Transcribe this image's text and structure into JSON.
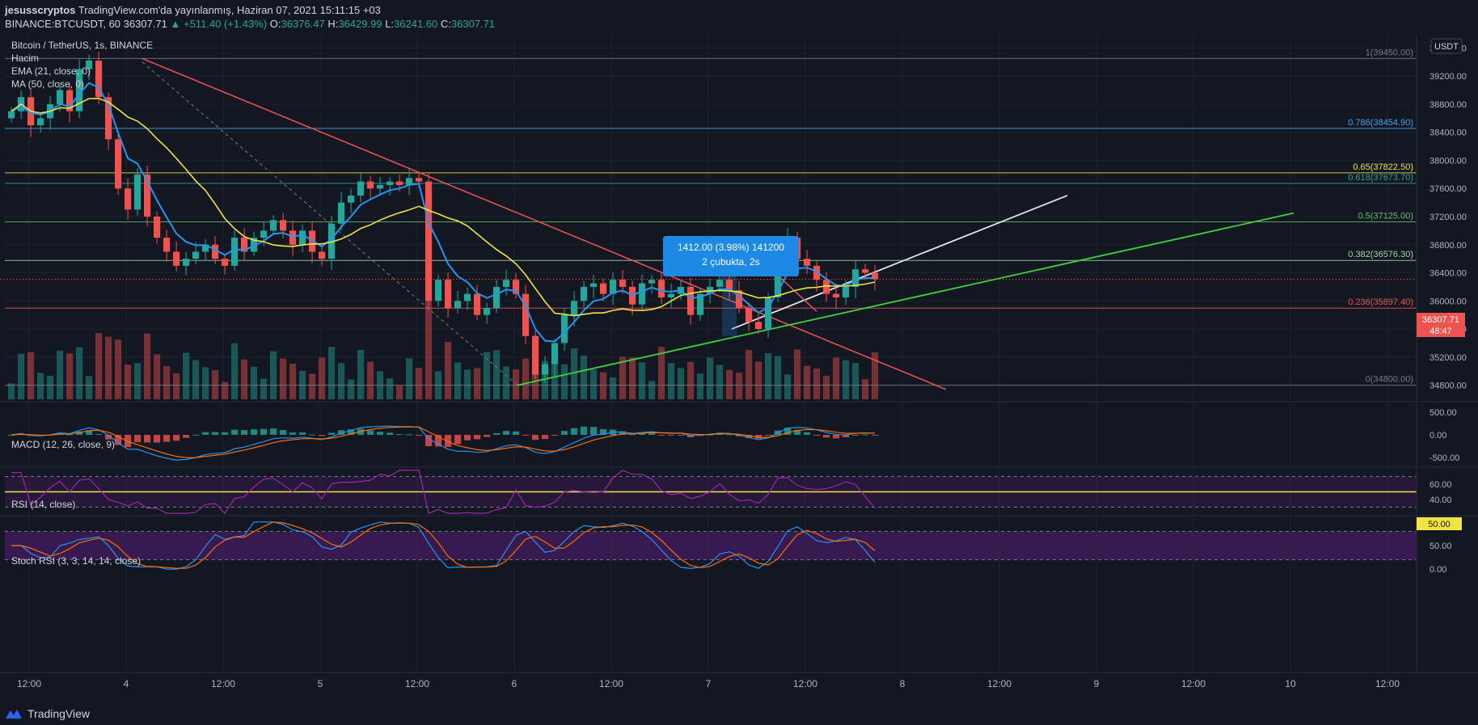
{
  "header": {
    "user": "jesusscryptos",
    "published": "TradingView.com'da yayınlanmış, Haziran 07, 2021 15:11:15 +03",
    "symbol": "BINANCE:BTCUSDT, 60",
    "last": "36307.71",
    "change": "▲ +511.40 (+1.43%)",
    "o_label": "O:",
    "o": "36376.47",
    "h_label": "H:",
    "h": "36429.99",
    "l_label": "L:",
    "l": "36241.60",
    "c_label": "C:",
    "c": "36307.71"
  },
  "legend": {
    "title": "Bitcoin / TetherUS, 1s, BINANCE",
    "volume": "Hacim",
    "ema": "EMA (21, close, 0)",
    "ma": "MA (50, close, 0)"
  },
  "currency": "USDT",
  "price_badge": {
    "price": "36307.71",
    "countdown": "48:47"
  },
  "measure": {
    "line1": "1412.00 (3.98%) 141200",
    "line2": "2 çubukta, 2s"
  },
  "footer": {
    "brand": "TradingView"
  },
  "colors": {
    "bg": "#131722",
    "up": "#26a69a",
    "down": "#ef5350",
    "ema": "#2196f3",
    "ma": "#f0e442",
    "rsi": "#7b1fa2",
    "measure": "#1e88e5"
  },
  "chart_data": [
    {
      "type": "candlestick",
      "title": "Bitcoin / TetherUS, 1s, BINANCE",
      "ylim": [
        34600,
        39800
      ],
      "y_ticks": [
        "39600.00",
        "39200.00",
        "38800.00",
        "38400.00",
        "38000.00",
        "37600.00",
        "37200.00",
        "36800.00",
        "36400.00",
        "36000.00",
        "35600.00",
        "35200.00",
        "34800.00"
      ],
      "x_ticks": [
        "12:00",
        "4",
        "12:00",
        "5",
        "12:00",
        "6",
        "12:00",
        "7",
        "12:00",
        "8",
        "12:00",
        "9",
        "12:00",
        "10",
        "12:00"
      ],
      "close_path": [
        38700,
        38900,
        38500,
        38600,
        38800,
        39000,
        38700,
        39300,
        39420,
        38900,
        38300,
        37600,
        37300,
        37800,
        37200,
        36900,
        36700,
        36500,
        36600,
        36700,
        36800,
        36600,
        36500,
        36900,
        36700,
        36900,
        37000,
        37150,
        37000,
        36800,
        37000,
        36700,
        36600,
        37100,
        37400,
        37500,
        37700,
        37600,
        37650,
        37700,
        37650,
        37750,
        37700,
        36000,
        36300,
        35900,
        36000,
        36100,
        35800,
        35900,
        36200,
        36300,
        36100,
        35500,
        34950,
        35100,
        35400,
        35800,
        36000,
        36200,
        36250,
        36100,
        36300,
        36200,
        35950,
        36250,
        36300,
        36050,
        36100,
        36200,
        35800,
        36100,
        36200,
        36300,
        36150,
        35900,
        35700,
        35600,
        36050,
        36600,
        36900,
        36600,
        36500,
        36300,
        36100,
        36050,
        36200,
        36450,
        36400,
        36308
      ],
      "fib_levels": [
        {
          "label": "1(39450.00)",
          "value": 39450,
          "color": "#787b86"
        },
        {
          "label": "0.786(38454.90)",
          "value": 38454.9,
          "color": "#42a5f5"
        },
        {
          "label": "0.65(37822.50)",
          "value": 37822.5,
          "color": "#f0e442"
        },
        {
          "label": "0.618(37673.70)",
          "value": 37673.7,
          "color": "#26a69a"
        },
        {
          "label": "0.5(37125.00)",
          "value": 37125,
          "color": "#66bb6a"
        },
        {
          "label": "0.382(36576.30)",
          "value": 36576.3,
          "color": "#a5d6a7"
        },
        {
          "label": "0.236(35897.40)",
          "value": 35897.4,
          "color": "#ef5350"
        },
        {
          "label": "0(34800.00)",
          "value": 34800,
          "color": "#787b86"
        }
      ]
    },
    {
      "type": "line",
      "title": "MACD (12, 26, close, 9)",
      "y_ticks": [
        "500.00",
        "0.00",
        "-500.00"
      ],
      "ylim": [
        -700,
        700
      ]
    },
    {
      "type": "line",
      "title": "RSI (14, close)",
      "y_ticks": [
        "60.00",
        "40.00"
      ],
      "badge": "50.00",
      "ylim": [
        20,
        80
      ]
    },
    {
      "type": "line",
      "title": "Stoch RSI (3, 3, 14, 14, close)",
      "y_ticks": [
        "100.00",
        "50.00",
        "0.00"
      ],
      "ylim": [
        -10,
        110
      ]
    }
  ]
}
